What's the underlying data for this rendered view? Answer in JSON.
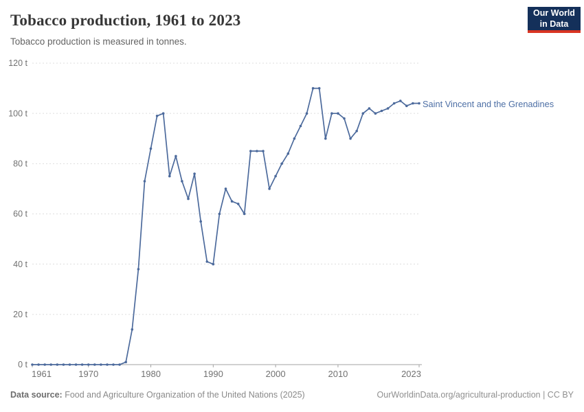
{
  "header": {
    "title": "Tobacco production, 1961 to 2023",
    "subtitle": "Tobacco production is measured in tonnes.",
    "logo_line1": "Our World",
    "logo_line2": "in Data"
  },
  "series_label": "Saint Vincent and the Grenadines",
  "footer": {
    "source_label": "Data source:",
    "source_text": " Food and Agriculture Organization of the United Nations (2025)",
    "attribution": "OurWorldinData.org/agricultural-production | CC BY"
  },
  "colors": {
    "line": "#4c6a9c",
    "series_label": "#4d6fa5",
    "grid": "#dddddd",
    "axis": "#a3a3a3",
    "tick_text": "#717171",
    "logo_bg": "#14305a",
    "logo_red": "#d93523"
  },
  "chart_data": {
    "type": "line",
    "title": "Tobacco production, 1961 to 2023",
    "ylabel": "",
    "xlabel": "",
    "unit": "tonnes",
    "ytick_suffix": " t",
    "ylim": [
      0,
      120
    ],
    "ytick_step": 20,
    "grid": "horizontal-dashed",
    "legend_position": "end-of-line-label",
    "xticks": [
      1961,
      1970,
      1980,
      1990,
      2000,
      2010,
      2023
    ],
    "x": [
      1961,
      1962,
      1963,
      1964,
      1965,
      1966,
      1967,
      1968,
      1969,
      1970,
      1971,
      1972,
      1973,
      1974,
      1975,
      1976,
      1977,
      1978,
      1979,
      1980,
      1981,
      1982,
      1983,
      1984,
      1985,
      1986,
      1987,
      1988,
      1989,
      1990,
      1991,
      1992,
      1993,
      1994,
      1995,
      1996,
      1997,
      1998,
      1999,
      2000,
      2001,
      2002,
      2003,
      2004,
      2005,
      2006,
      2007,
      2008,
      2009,
      2010,
      2011,
      2012,
      2013,
      2014,
      2015,
      2016,
      2017,
      2018,
      2019,
      2020,
      2021,
      2022,
      2023
    ],
    "series": [
      {
        "name": "Saint Vincent and the Grenadines",
        "values": [
          0,
          0,
          0,
          0,
          0,
          0,
          0,
          0,
          0,
          0,
          0,
          0,
          0,
          0,
          0,
          1,
          14,
          38,
          73,
          86,
          99,
          100,
          75,
          83,
          73,
          66,
          76,
          57,
          41,
          40,
          60,
          70,
          65,
          64,
          60,
          85,
          85,
          85,
          70,
          75,
          80,
          84,
          90,
          95,
          100,
          110,
          110,
          90,
          100,
          100,
          98,
          90,
          93,
          100,
          102,
          100,
          101,
          102,
          104,
          105,
          103,
          104,
          104
        ]
      }
    ]
  }
}
